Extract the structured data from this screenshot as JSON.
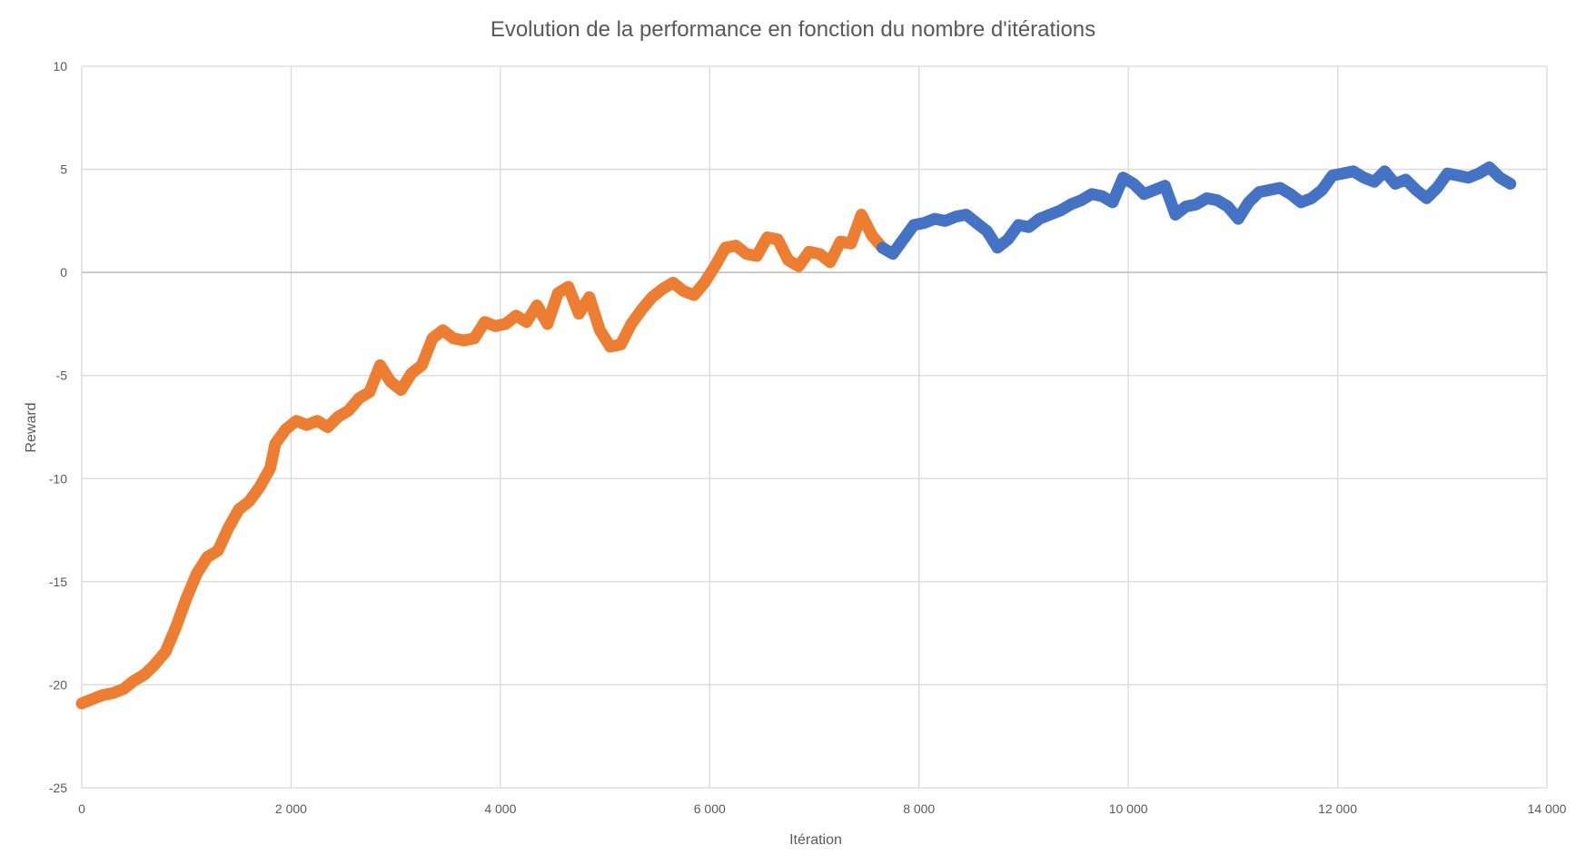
{
  "chart_data": {
    "type": "line",
    "title": "Evolution de la performance en fonction du nombre d'itérations",
    "xlabel": "Itération",
    "ylabel": "Reward",
    "xlim": [
      0,
      14000
    ],
    "ylim": [
      -25,
      10
    ],
    "x_ticks": [
      0,
      2000,
      4000,
      6000,
      8000,
      10000,
      12000,
      14000
    ],
    "x_tick_labels": [
      "0",
      "2 000",
      "4 000",
      "6 000",
      "8 000",
      "10 000",
      "12 000",
      "14 000"
    ],
    "y_ticks": [
      10,
      5,
      0,
      -5,
      -10,
      -15,
      -20,
      -25
    ],
    "y_tick_labels": [
      "10",
      "5",
      "0",
      "-5",
      "-10",
      "-15",
      "-20",
      "-25"
    ],
    "grid": true,
    "legend": "none",
    "series": [
      {
        "color": "#ED7D31",
        "points": [
          [
            0,
            -20.9
          ],
          [
            100,
            -20.7
          ],
          [
            200,
            -20.5
          ],
          [
            300,
            -20.4
          ],
          [
            400,
            -20.2
          ],
          [
            500,
            -19.8
          ],
          [
            600,
            -19.5
          ],
          [
            700,
            -19.0
          ],
          [
            800,
            -18.4
          ],
          [
            900,
            -17.2
          ],
          [
            1000,
            -15.8
          ],
          [
            1100,
            -14.6
          ],
          [
            1200,
            -13.8
          ],
          [
            1300,
            -13.5
          ],
          [
            1400,
            -12.4
          ],
          [
            1500,
            -11.5
          ],
          [
            1600,
            -11.1
          ],
          [
            1700,
            -10.4
          ],
          [
            1800,
            -9.5
          ],
          [
            1850,
            -8.3
          ],
          [
            1950,
            -7.6
          ],
          [
            2050,
            -7.2
          ],
          [
            2150,
            -7.4
          ],
          [
            2250,
            -7.2
          ],
          [
            2350,
            -7.5
          ],
          [
            2450,
            -7.0
          ],
          [
            2550,
            -6.7
          ],
          [
            2650,
            -6.1
          ],
          [
            2750,
            -5.8
          ],
          [
            2850,
            -4.5
          ],
          [
            2950,
            -5.3
          ],
          [
            3050,
            -5.7
          ],
          [
            3150,
            -4.9
          ],
          [
            3250,
            -4.5
          ],
          [
            3350,
            -3.2
          ],
          [
            3450,
            -2.8
          ],
          [
            3550,
            -3.2
          ],
          [
            3650,
            -3.3
          ],
          [
            3750,
            -3.2
          ],
          [
            3850,
            -2.4
          ],
          [
            3950,
            -2.6
          ],
          [
            4050,
            -2.5
          ],
          [
            4150,
            -2.1
          ],
          [
            4250,
            -2.4
          ],
          [
            4350,
            -1.6
          ],
          [
            4450,
            -2.5
          ],
          [
            4550,
            -1.0
          ],
          [
            4650,
            -0.7
          ],
          [
            4750,
            -2.0
          ],
          [
            4850,
            -1.2
          ],
          [
            4950,
            -2.8
          ],
          [
            5050,
            -3.6
          ],
          [
            5150,
            -3.5
          ],
          [
            5250,
            -2.5
          ],
          [
            5350,
            -1.8
          ],
          [
            5450,
            -1.2
          ],
          [
            5550,
            -0.8
          ],
          [
            5650,
            -0.5
          ],
          [
            5750,
            -0.9
          ],
          [
            5850,
            -1.1
          ],
          [
            5950,
            -0.5
          ],
          [
            6050,
            0.3
          ],
          [
            6150,
            1.2
          ],
          [
            6250,
            1.3
          ],
          [
            6350,
            0.9
          ],
          [
            6450,
            0.8
          ],
          [
            6550,
            1.7
          ],
          [
            6650,
            1.6
          ],
          [
            6750,
            0.6
          ],
          [
            6850,
            0.3
          ],
          [
            6950,
            1.0
          ],
          [
            7050,
            0.9
          ],
          [
            7150,
            0.5
          ],
          [
            7250,
            1.5
          ],
          [
            7350,
            1.4
          ],
          [
            7450,
            2.8
          ],
          [
            7550,
            1.8
          ],
          [
            7650,
            1.2
          ]
        ]
      },
      {
        "color": "#4472C4",
        "points": [
          [
            7650,
            1.2
          ],
          [
            7750,
            0.9
          ],
          [
            7850,
            1.6
          ],
          [
            7950,
            2.3
          ],
          [
            8050,
            2.4
          ],
          [
            8150,
            2.6
          ],
          [
            8250,
            2.5
          ],
          [
            8350,
            2.7
          ],
          [
            8450,
            2.8
          ],
          [
            8550,
            2.4
          ],
          [
            8650,
            2.0
          ],
          [
            8750,
            1.2
          ],
          [
            8850,
            1.6
          ],
          [
            8950,
            2.3
          ],
          [
            9050,
            2.2
          ],
          [
            9150,
            2.6
          ],
          [
            9250,
            2.8
          ],
          [
            9350,
            3.0
          ],
          [
            9450,
            3.3
          ],
          [
            9550,
            3.5
          ],
          [
            9650,
            3.8
          ],
          [
            9750,
            3.7
          ],
          [
            9850,
            3.4
          ],
          [
            9950,
            4.6
          ],
          [
            10050,
            4.3
          ],
          [
            10150,
            3.8
          ],
          [
            10250,
            4.0
          ],
          [
            10350,
            4.2
          ],
          [
            10450,
            2.8
          ],
          [
            10550,
            3.2
          ],
          [
            10650,
            3.3
          ],
          [
            10750,
            3.6
          ],
          [
            10850,
            3.5
          ],
          [
            10950,
            3.2
          ],
          [
            11050,
            2.6
          ],
          [
            11150,
            3.4
          ],
          [
            11250,
            3.9
          ],
          [
            11350,
            4.0
          ],
          [
            11450,
            4.1
          ],
          [
            11550,
            3.8
          ],
          [
            11650,
            3.4
          ],
          [
            11750,
            3.6
          ],
          [
            11850,
            4.0
          ],
          [
            11950,
            4.7
          ],
          [
            12050,
            4.8
          ],
          [
            12150,
            4.9
          ],
          [
            12250,
            4.6
          ],
          [
            12350,
            4.4
          ],
          [
            12450,
            4.9
          ],
          [
            12550,
            4.3
          ],
          [
            12650,
            4.5
          ],
          [
            12750,
            4.0
          ],
          [
            12850,
            3.6
          ],
          [
            12950,
            4.1
          ],
          [
            13050,
            4.8
          ],
          [
            13150,
            4.7
          ],
          [
            13250,
            4.6
          ],
          [
            13350,
            4.8
          ],
          [
            13450,
            5.1
          ],
          [
            13550,
            4.6
          ],
          [
            13650,
            4.3
          ]
        ]
      }
    ]
  }
}
